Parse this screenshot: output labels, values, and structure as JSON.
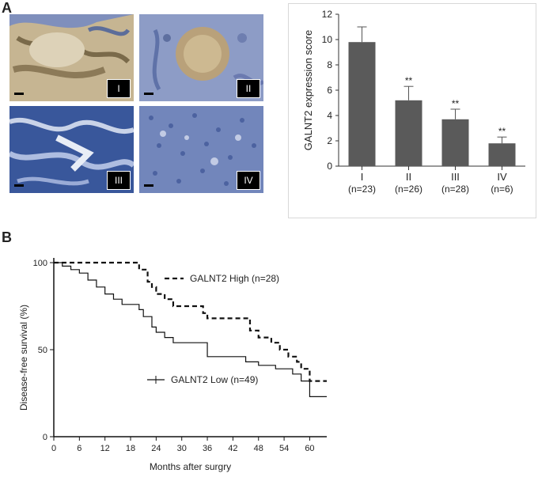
{
  "panels": {
    "a_label": "A",
    "b_label": "B"
  },
  "micrographs": [
    {
      "stage": "I",
      "tone": "#b9a37c"
    },
    {
      "stage": "II",
      "tone": "#8fa1c4"
    },
    {
      "stage": "III",
      "tone": "#3f5c9f"
    },
    {
      "stage": "IV",
      "tone": "#6f84b8"
    }
  ],
  "chart_data": [
    {
      "type": "bar",
      "ylabel": "GALNT2 expression score",
      "ylim": [
        0,
        12
      ],
      "yticks": [
        "0",
        "2",
        "4",
        "6",
        "8",
        "10",
        "12"
      ],
      "categories": [
        "I",
        "II",
        "III",
        "IV"
      ],
      "category_counts": [
        "(n=23)",
        "(n=26)",
        "(n=28)",
        "(n=6)"
      ],
      "values": [
        9.8,
        5.2,
        3.7,
        1.8
      ],
      "errors": [
        1.2,
        1.1,
        0.8,
        0.5
      ],
      "annotations": [
        "",
        "**",
        "**",
        "**"
      ],
      "bar_color": "#5a5a5a"
    },
    {
      "type": "line",
      "xlabel": "Months after surgry",
      "ylabel": "Disease-free survival (%)",
      "xlim": [
        0,
        64
      ],
      "ylim": [
        0,
        100
      ],
      "xticks": [
        "0",
        "6",
        "12",
        "18",
        "24",
        "30",
        "36",
        "42",
        "48",
        "54",
        "60"
      ],
      "yticks": [
        "0",
        "50",
        "100"
      ],
      "series": [
        {
          "name": "GALNT2 High (n=28)",
          "style": "dashed",
          "x": [
            0,
            19,
            20,
            22,
            23,
            24,
            26,
            28,
            31,
            35,
            36,
            41,
            46,
            48,
            51,
            53,
            55,
            57,
            58,
            60,
            64
          ],
          "y": [
            100,
            100,
            96,
            89,
            86,
            82,
            79,
            75,
            75,
            71,
            68,
            68,
            61,
            57,
            54,
            50,
            46,
            43,
            39,
            32,
            32
          ]
        },
        {
          "name": "GALNT2 Low (n=49)",
          "style": "solid",
          "x": [
            0,
            2,
            4,
            6,
            8,
            10,
            12,
            14,
            16,
            20,
            21,
            23,
            24,
            26,
            28,
            35,
            36,
            45,
            48,
            52,
            56,
            58,
            60,
            64
          ],
          "y": [
            100,
            98,
            96,
            94,
            90,
            86,
            82,
            79,
            76,
            73,
            69,
            63,
            60,
            57,
            54,
            54,
            46,
            43,
            41,
            39,
            36,
            32,
            23,
            23
          ]
        }
      ]
    }
  ]
}
